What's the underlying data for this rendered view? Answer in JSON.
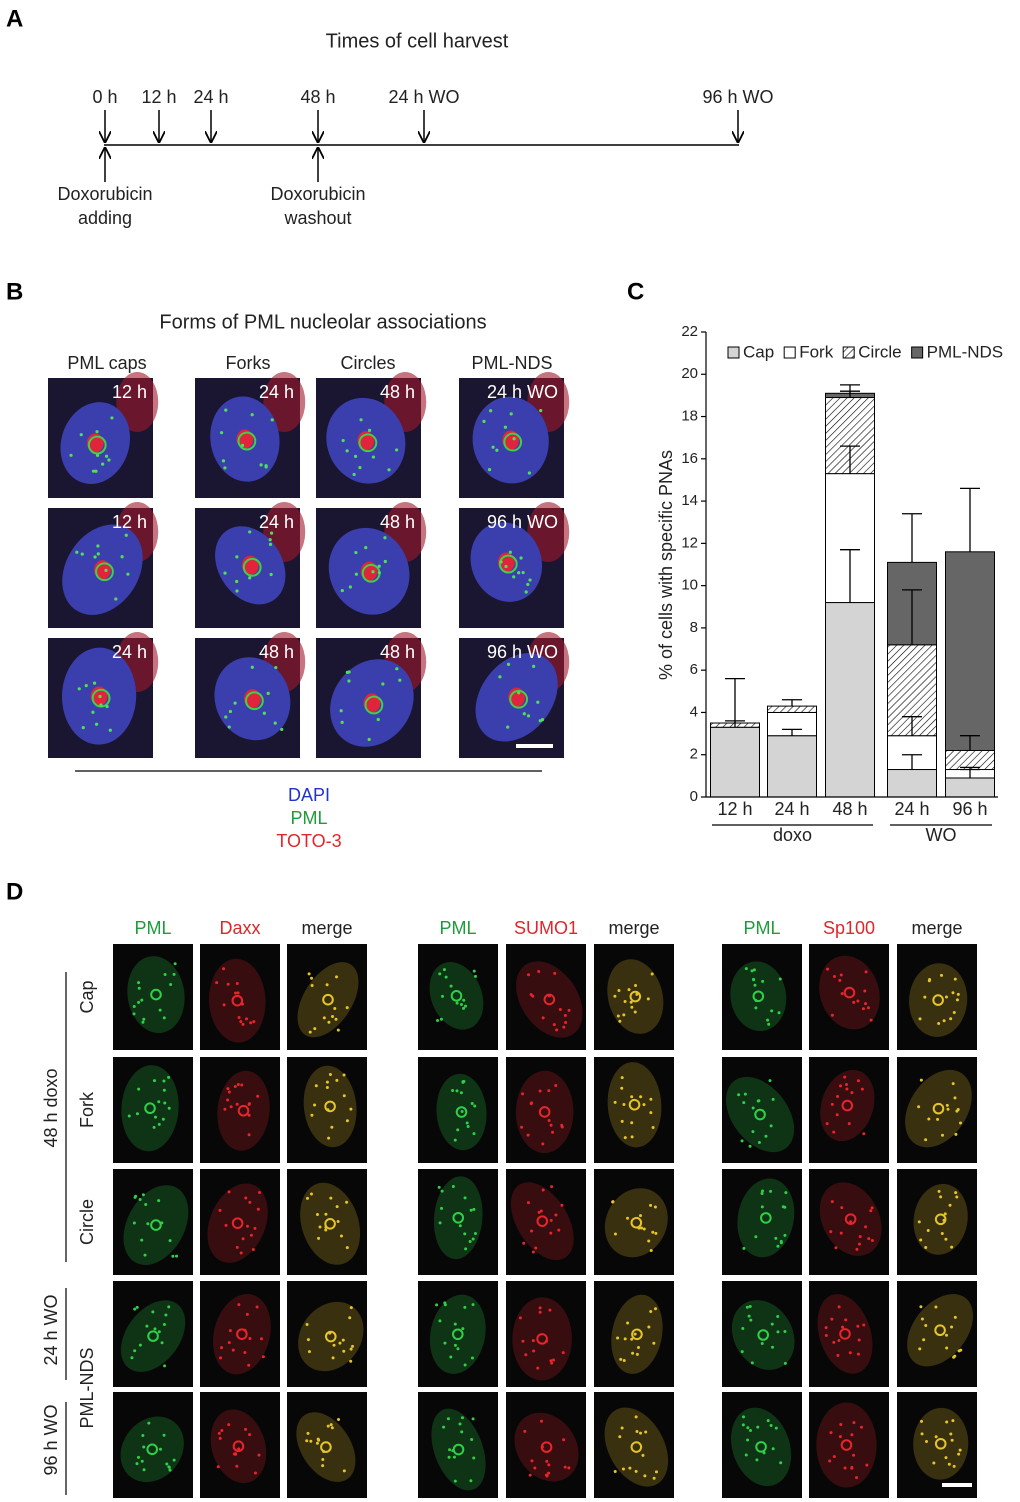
{
  "panel_a": {
    "label": "A",
    "title": "Times of cell harvest",
    "times": [
      "0 h",
      "12 h",
      "24 h",
      "48 h",
      "24 h WO",
      "96 h WO"
    ],
    "events": [
      [
        "Doxorubicin",
        "adding"
      ],
      [
        "Doxorubicin",
        "washout"
      ]
    ]
  },
  "panel_b": {
    "label": "B",
    "title": "Forms of PML nucleolar associations",
    "columns": [
      "PML caps",
      "Forks",
      "Circles",
      "PML-NDS"
    ],
    "image_labels": [
      [
        "12 h",
        "12 h",
        "24 h"
      ],
      [
        "24 h",
        "24 h",
        "48 h"
      ],
      [
        "48 h",
        "48 h",
        "48 h"
      ],
      [
        "24 h WO",
        "96 h WO",
        "96 h WO"
      ]
    ],
    "stains": [
      "DAPI",
      "PML",
      "TOTO-3"
    ]
  },
  "chart_data": {
    "type": "bar",
    "stacked": true,
    "label": "C",
    "y_label": "% of cells with specific PNAs",
    "categories": [
      "12 h",
      "24 h",
      "48 h",
      "24 h",
      "96 h"
    ],
    "groups": [
      "doxo",
      "WO"
    ],
    "series": [
      {
        "name": "Cap",
        "color": "#d4d4d4",
        "values": [
          3.3,
          2.9,
          9.2,
          1.3,
          0.9
        ],
        "errors": [
          0.3,
          0.3,
          2.5,
          0.7,
          0.4
        ]
      },
      {
        "name": "Fork",
        "color": "#ffffff",
        "values": [
          0,
          1.1,
          6.1,
          1.6,
          0.4
        ],
        "errors": [
          null,
          null,
          1.3,
          0.9,
          0.1
        ]
      },
      {
        "name": "Circle",
        "color": "#ffffff",
        "pattern": "hatch",
        "values": [
          0.2,
          0.3,
          3.6,
          4.3,
          0.9
        ],
        "errors": [
          2.1,
          0.3,
          0.3,
          2.6,
          0.7
        ]
      },
      {
        "name": "PML-NDS",
        "color": "#666666",
        "values": [
          0,
          0,
          0.2,
          3.9,
          9.4
        ],
        "errors": [
          null,
          null,
          0.4,
          2.3,
          3.0
        ]
      }
    ],
    "ylim": [
      0,
      22
    ],
    "yticks": [
      0,
      2,
      4,
      6,
      8,
      10,
      12,
      14,
      16,
      18,
      20,
      22
    ]
  },
  "panel_d": {
    "label": "D",
    "groups": [
      [
        "PML",
        "Daxx",
        "merge"
      ],
      [
        "PML",
        "SUMO1",
        "merge"
      ],
      [
        "PML",
        "Sp100",
        "merge"
      ]
    ],
    "row_labels": [
      "Cap",
      "Fork",
      "Circle",
      "PML-NDS"
    ],
    "conditions": [
      "48 h doxo",
      "24 h WO",
      "96 h WO"
    ]
  }
}
